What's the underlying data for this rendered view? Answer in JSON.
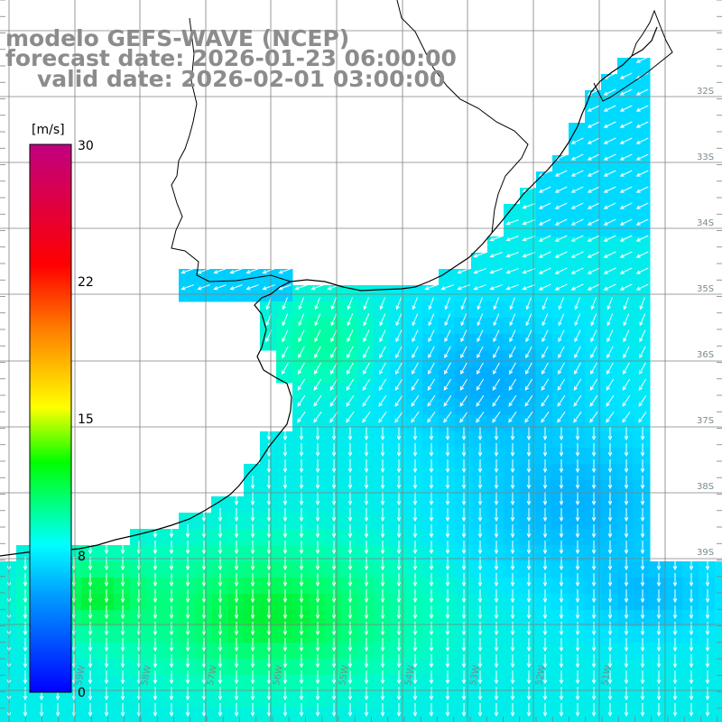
{
  "header": {
    "line1": "modelo GEFS-WAVE (NCEP)",
    "line2": "forecast date: 2026-01-23 06:00:00",
    "line3": "valid date: 2026-02-01 03:00:00"
  },
  "colorbar": {
    "unit": "[m/s]",
    "ticks": [
      "30",
      "22",
      "15",
      "8",
      "0"
    ],
    "range": [
      0,
      30
    ],
    "colors": [
      "#0000ff",
      "#00a0ff",
      "#00ffff",
      "#00ff00",
      "#ffff00",
      "#ff8000",
      "#ff0000",
      "#c00080"
    ]
  },
  "map": {
    "lat_labels": [
      "32S",
      "33S",
      "34S",
      "35S",
      "36S",
      "37S",
      "38S",
      "39S"
    ],
    "lon_labels": [
      "59W",
      "58W",
      "57W",
      "56W",
      "55W",
      "54W",
      "53W",
      "52W",
      "51W"
    ],
    "wind_direction": "from north-east",
    "land_color": "#ffffff",
    "coast_color": "#000000",
    "grid_color": "#808080"
  }
}
